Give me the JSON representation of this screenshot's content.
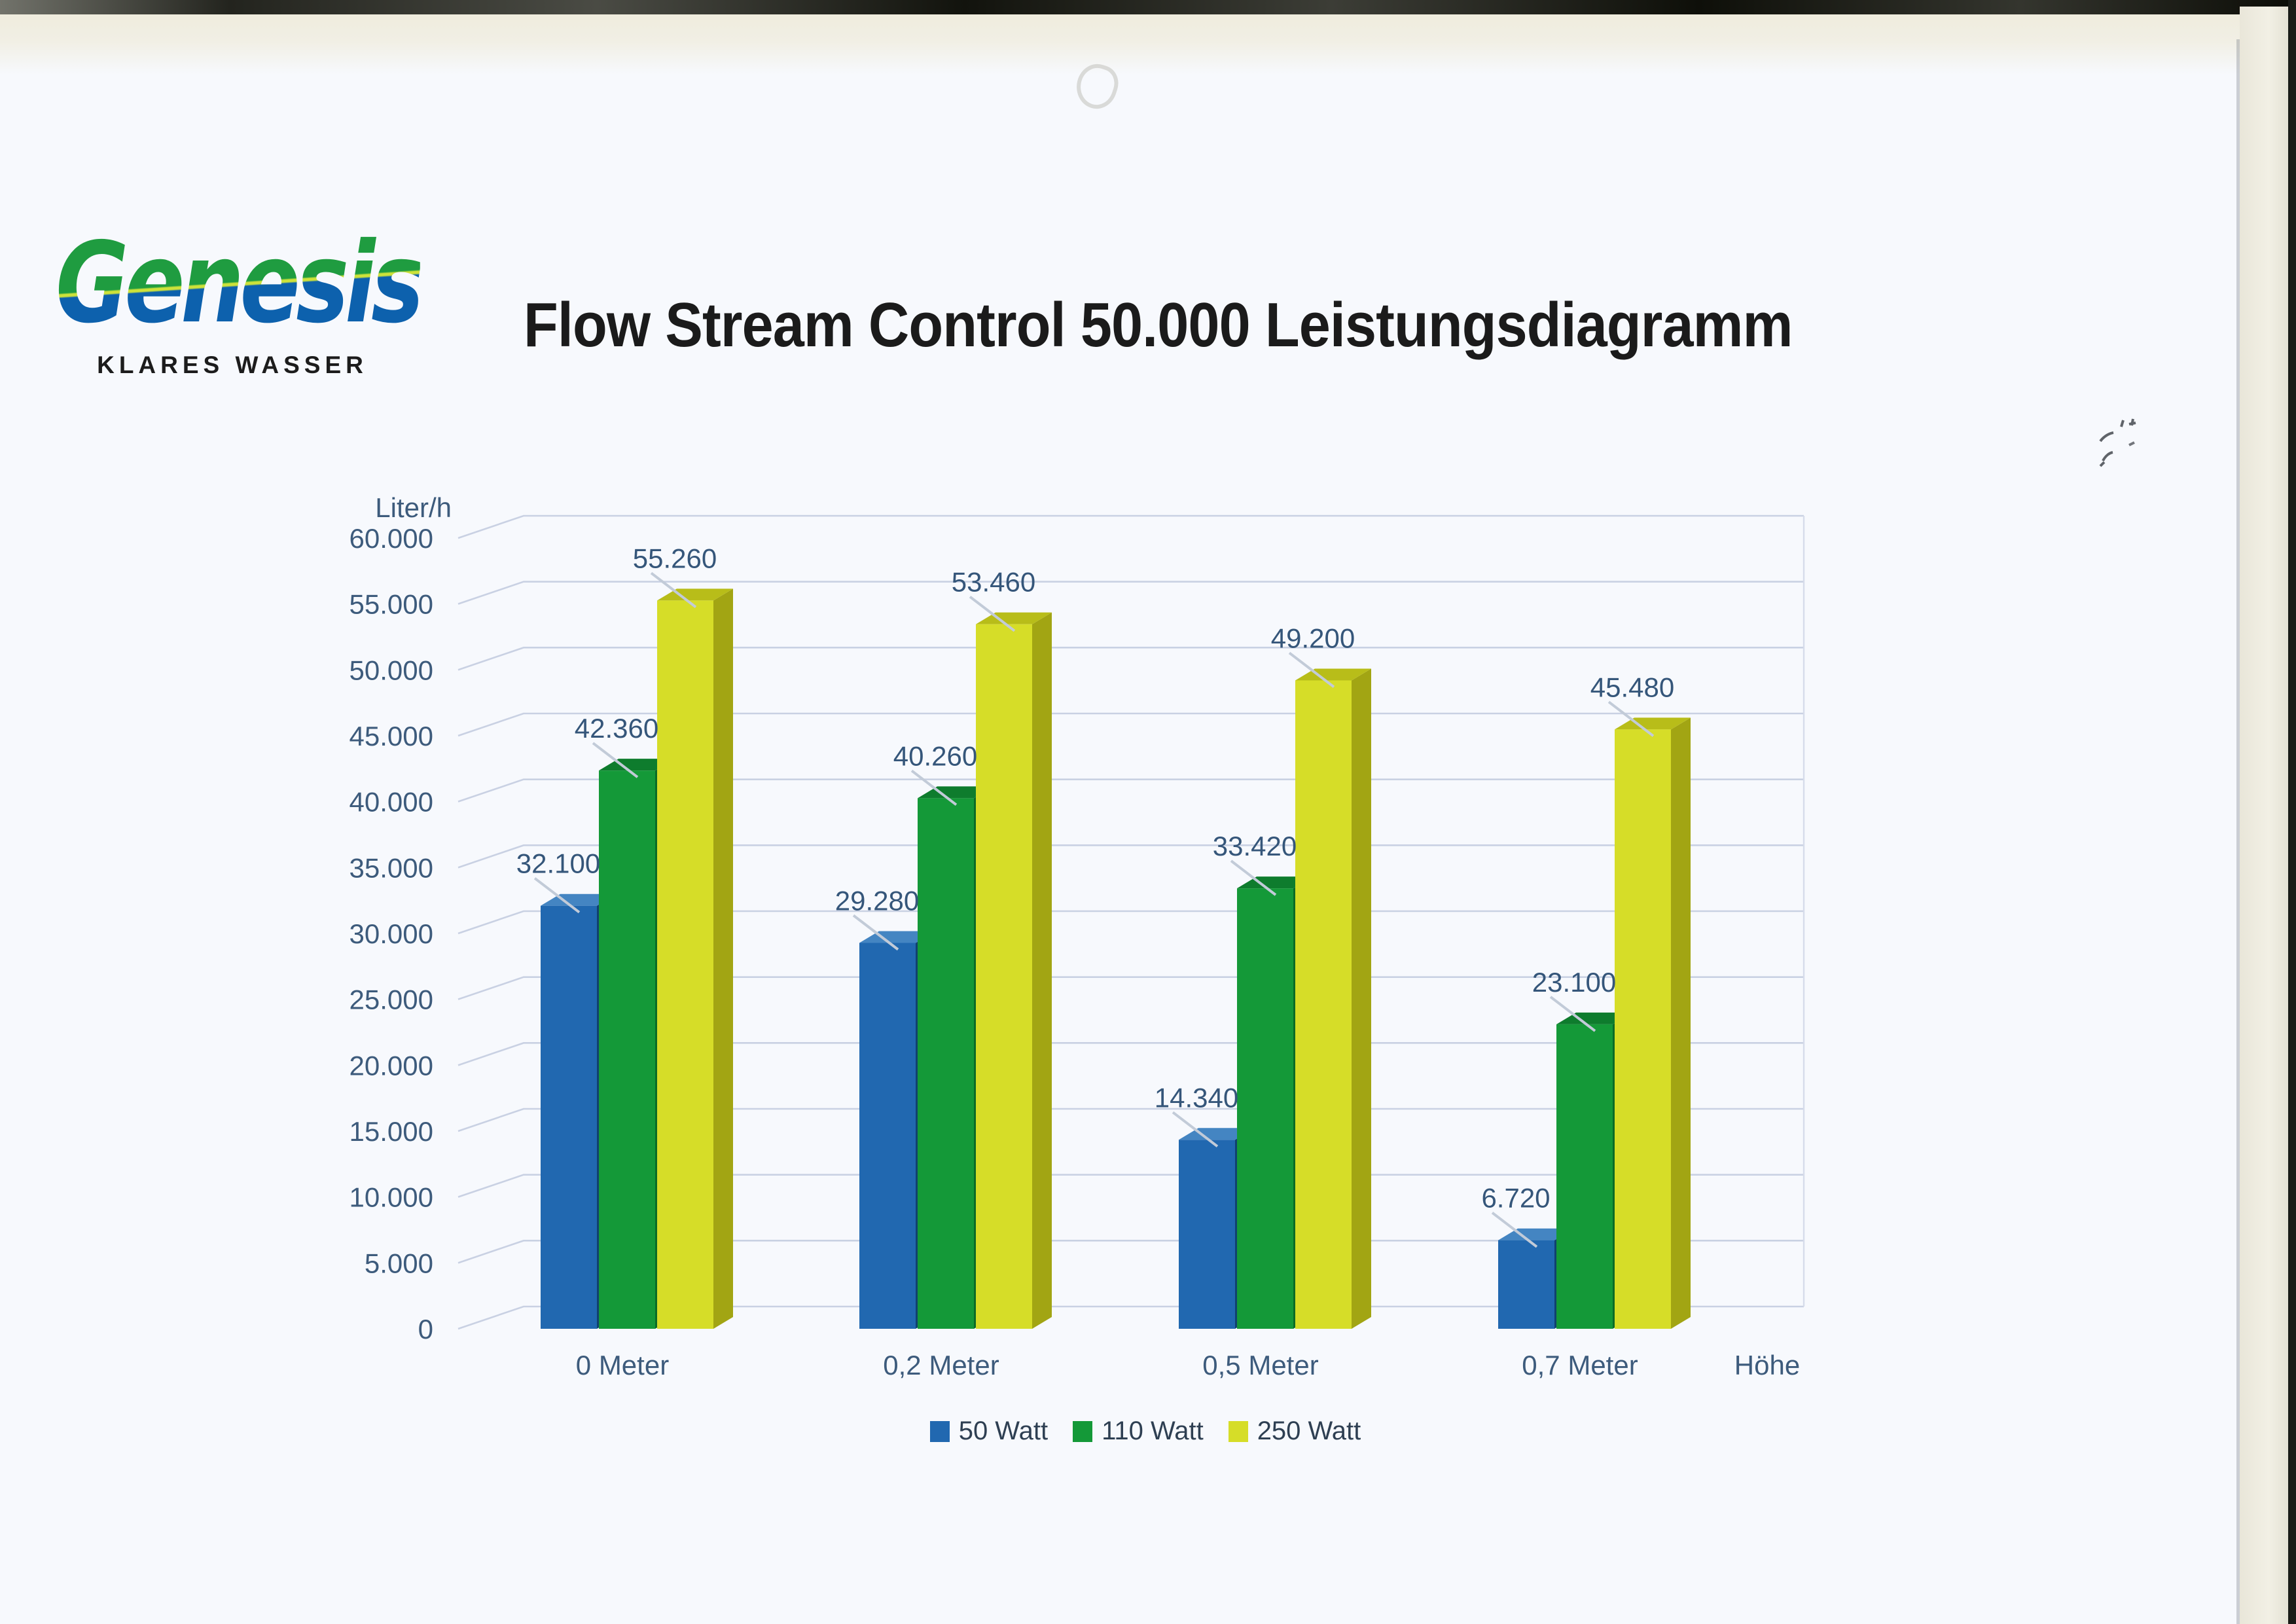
{
  "logo": {
    "brand": "Genesis",
    "tagline": "KLARES WASSER",
    "green": "#1f9c40",
    "blue": "#0d61ad"
  },
  "header": {
    "title": "Flow Stream Control 50.000 Leistungsdiagramm"
  },
  "chart_data": {
    "type": "bar",
    "style": "3d-clustered-column",
    "title": "Flow Stream Control 50.000 Leistungsdiagramm",
    "ylabel": "Liter/h",
    "xlabel": "Höhe",
    "categories": [
      "0 Meter",
      "0,2 Meter",
      "0,5 Meter",
      "0,7 Meter"
    ],
    "series": [
      {
        "name": "50 Watt",
        "values": [
          32100,
          29280,
          14340,
          6720
        ],
        "labels": [
          "32.100",
          "29.280",
          "14.340",
          "6.720"
        ],
        "color": "#2168b0",
        "top_color": "#4485c2",
        "side_color": "#11416f"
      },
      {
        "name": "110 Watt",
        "values": [
          42360,
          40260,
          33420,
          23100
        ],
        "labels": [
          "42.360",
          "40.260",
          "33.420",
          "23.100"
        ],
        "color": "#149938",
        "top_color": "#0e7c2d",
        "side_color": "#0b6b26"
      },
      {
        "name": "250 Watt",
        "values": [
          55260,
          53460,
          49200,
          45480
        ],
        "labels": [
          "55.260",
          "53.460",
          "49.200",
          "45.480"
        ],
        "color": "#d6dd28",
        "top_color": "#b8bd19",
        "side_color": "#a2a513"
      }
    ],
    "ylim": [
      0,
      60000
    ],
    "y_tick_step": 5000,
    "y_tick_labels": [
      "0",
      "5.000",
      "10.000",
      "15.000",
      "20.000",
      "25.000",
      "30.000",
      "35.000",
      "40.000",
      "45.000",
      "50.000",
      "55.000",
      "60.000"
    ],
    "grid": true,
    "grid_color": "#c9d1e3",
    "axis_text_color": "#3d5b7c",
    "data_label_color": "#35567a",
    "legend_position": "bottom"
  }
}
